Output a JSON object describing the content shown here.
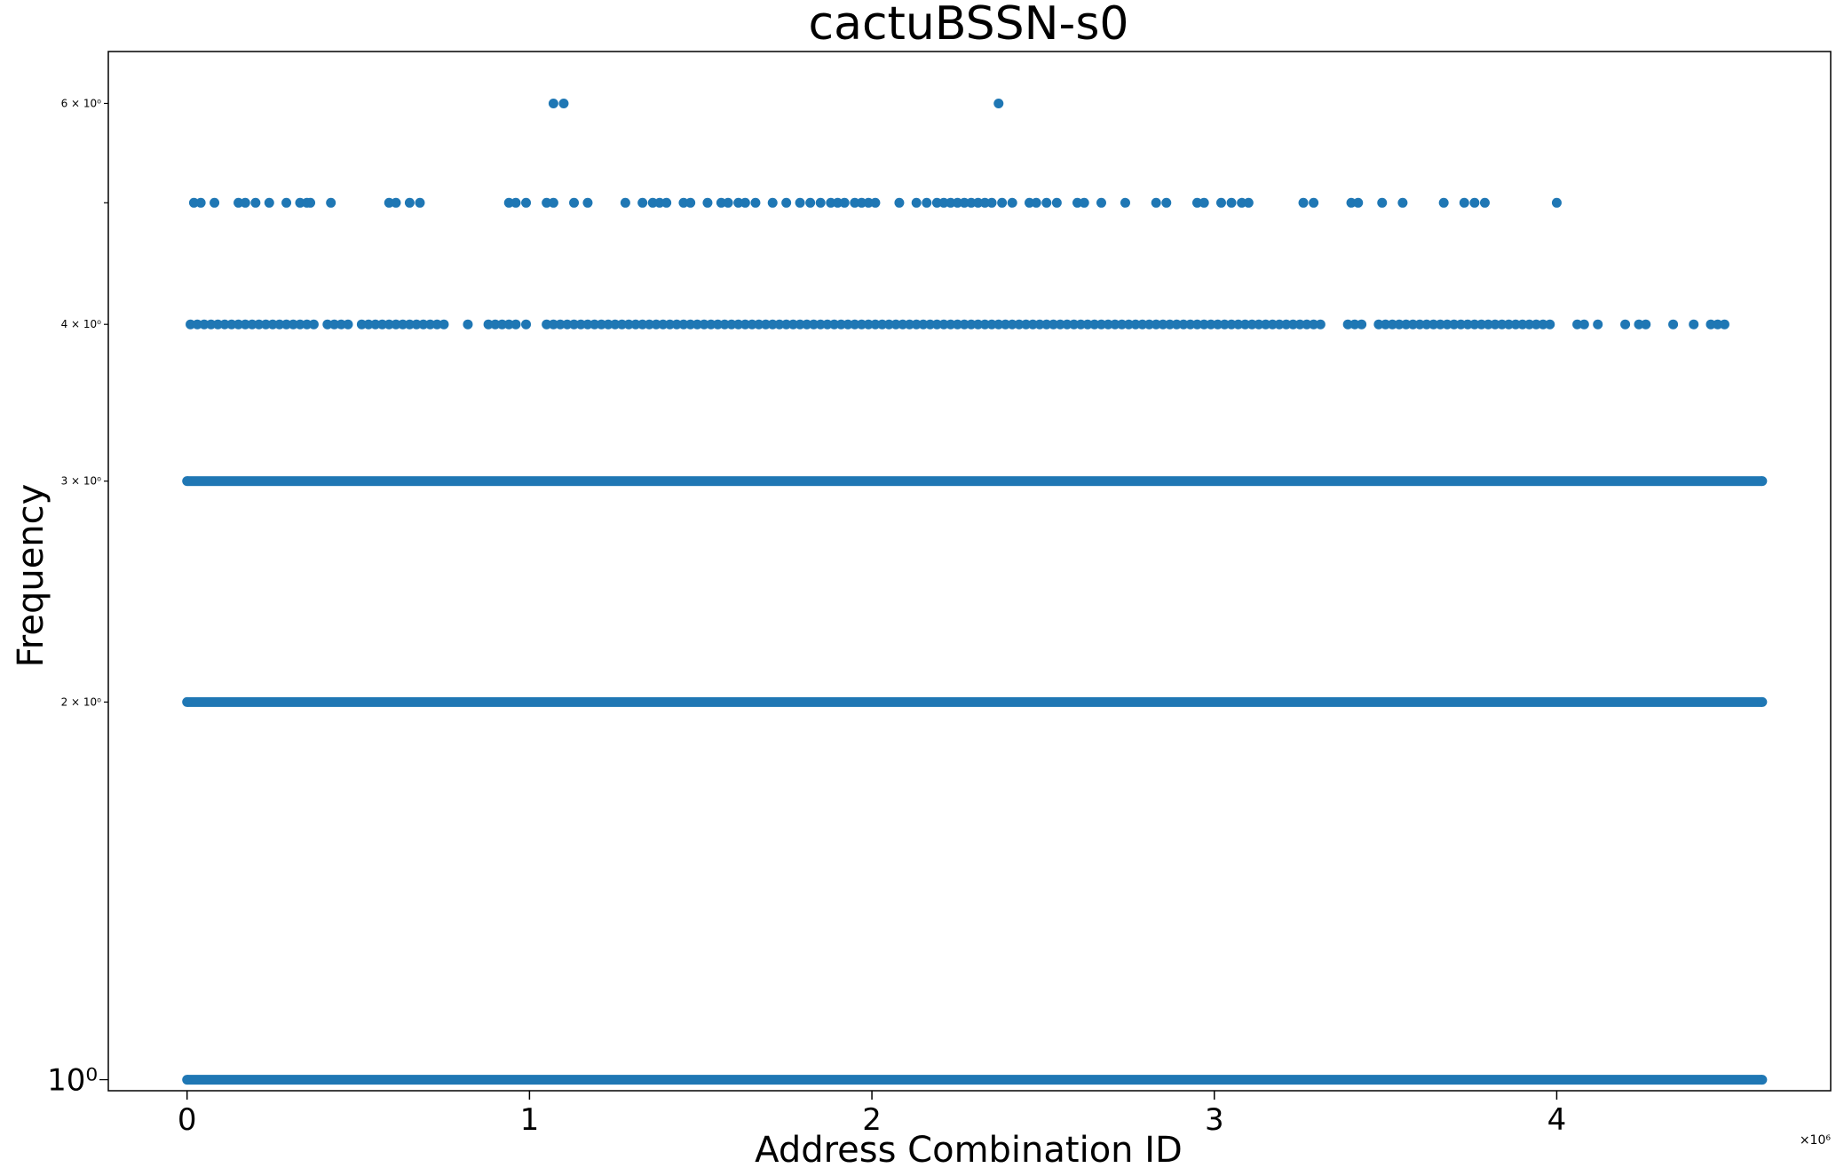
{
  "chart_data": {
    "type": "scatter",
    "title": "cactuBSSN-s0",
    "xlabel": "Address Combination ID",
    "ylabel": "Frequency",
    "x_scale_label": "×10⁶",
    "xlim": [
      -0.23,
      4.8
    ],
    "ylim": [
      0.98,
      6.6
    ],
    "y_scale": "log",
    "grid": false,
    "legend": "none",
    "marker_color": "#1f77b4",
    "x_ticks": [
      {
        "value": 0,
        "label": "0"
      },
      {
        "value": 1,
        "label": "1"
      },
      {
        "value": 2,
        "label": "2"
      },
      {
        "value": 3,
        "label": "3"
      },
      {
        "value": 4,
        "label": "4"
      }
    ],
    "y_ticks": [
      {
        "value": 1,
        "label": "10⁰",
        "major": true
      },
      {
        "value": 2,
        "label": "2 × 10⁰",
        "major": false
      },
      {
        "value": 3,
        "label": "3 × 10⁰",
        "major": false
      },
      {
        "value": 4,
        "label": "4 × 10⁰",
        "major": false
      },
      {
        "value": 5,
        "label": "",
        "major": false
      },
      {
        "value": 6,
        "label": "6 × 10⁰",
        "major": false
      }
    ],
    "series": [
      {
        "frequency": 1,
        "x": "dense continuous band",
        "x_range": [
          0,
          4.6
        ]
      },
      {
        "frequency": 2,
        "x": "dense continuous band",
        "x_range": [
          0,
          4.6
        ]
      },
      {
        "frequency": 3,
        "x": "dense continuous band",
        "x_range": [
          0,
          4.6
        ]
      },
      {
        "frequency": 4,
        "x": [
          0.01,
          0.03,
          0.05,
          0.07,
          0.09,
          0.11,
          0.13,
          0.15,
          0.17,
          0.19,
          0.21,
          0.23,
          0.25,
          0.27,
          0.29,
          0.31,
          0.33,
          0.35,
          0.37,
          0.41,
          0.43,
          0.45,
          0.47,
          0.51,
          0.53,
          0.55,
          0.57,
          0.59,
          0.61,
          0.63,
          0.65,
          0.67,
          0.69,
          0.71,
          0.73,
          0.75,
          0.82,
          0.88,
          0.9,
          0.92,
          0.94,
          0.96,
          0.99,
          1.05,
          1.07,
          1.09,
          1.11,
          1.13,
          1.15,
          1.17,
          1.19,
          1.21,
          1.23,
          1.25,
          1.27,
          1.29,
          1.31,
          1.33,
          1.35,
          1.37,
          1.39,
          1.41,
          1.43,
          1.45,
          1.47,
          1.49,
          1.51,
          1.53,
          1.55,
          1.57,
          1.59,
          1.61,
          1.63,
          1.65,
          1.67,
          1.69,
          1.71,
          1.73,
          1.75,
          1.77,
          1.79,
          1.81,
          1.83,
          1.85,
          1.87,
          1.89,
          1.91,
          1.93,
          1.95,
          1.97,
          1.99,
          2.01,
          2.03,
          2.05,
          2.07,
          2.09,
          2.11,
          2.13,
          2.15,
          2.17,
          2.19,
          2.21,
          2.23,
          2.25,
          2.27,
          2.29,
          2.31,
          2.33,
          2.35,
          2.37,
          2.39,
          2.41,
          2.43,
          2.45,
          2.47,
          2.49,
          2.51,
          2.53,
          2.55,
          2.57,
          2.59,
          2.61,
          2.63,
          2.65,
          2.67,
          2.69,
          2.71,
          2.73,
          2.75,
          2.77,
          2.79,
          2.81,
          2.83,
          2.85,
          2.87,
          2.89,
          2.91,
          2.93,
          2.95,
          2.97,
          2.99,
          3.01,
          3.03,
          3.05,
          3.07,
          3.09,
          3.11,
          3.13,
          3.15,
          3.17,
          3.19,
          3.21,
          3.23,
          3.25,
          3.27,
          3.29,
          3.31,
          3.39,
          3.41,
          3.43,
          3.48,
          3.5,
          3.52,
          3.54,
          3.56,
          3.58,
          3.6,
          3.62,
          3.64,
          3.66,
          3.68,
          3.7,
          3.72,
          3.74,
          3.76,
          3.78,
          3.8,
          3.82,
          3.84,
          3.86,
          3.88,
          3.9,
          3.92,
          3.94,
          3.96,
          3.98,
          4.06,
          4.08,
          4.12,
          4.2,
          4.24,
          4.26,
          4.34,
          4.4,
          4.45,
          4.47,
          4.49
        ]
      },
      {
        "frequency": 5,
        "x": [
          0.02,
          0.04,
          0.08,
          0.15,
          0.17,
          0.2,
          0.24,
          0.29,
          0.33,
          0.35,
          0.36,
          0.42,
          0.59,
          0.61,
          0.65,
          0.68,
          0.94,
          0.96,
          0.99,
          1.05,
          1.07,
          1.13,
          1.17,
          1.28,
          1.33,
          1.36,
          1.38,
          1.4,
          1.45,
          1.47,
          1.52,
          1.56,
          1.58,
          1.61,
          1.63,
          1.66,
          1.71,
          1.75,
          1.79,
          1.82,
          1.85,
          1.88,
          1.9,
          1.92,
          1.95,
          1.97,
          1.99,
          2.01,
          2.08,
          2.13,
          2.16,
          2.19,
          2.21,
          2.23,
          2.25,
          2.27,
          2.29,
          2.31,
          2.33,
          2.35,
          2.38,
          2.41,
          2.46,
          2.48,
          2.51,
          2.54,
          2.6,
          2.62,
          2.67,
          2.74,
          2.83,
          2.86,
          2.95,
          2.97,
          3.02,
          3.05,
          3.08,
          3.1,
          3.26,
          3.29,
          3.4,
          3.42,
          3.49,
          3.55,
          3.67,
          3.73,
          3.76,
          3.79,
          4.0
        ]
      },
      {
        "frequency": 6,
        "x": [
          1.07,
          1.1,
          2.37
        ]
      }
    ]
  }
}
